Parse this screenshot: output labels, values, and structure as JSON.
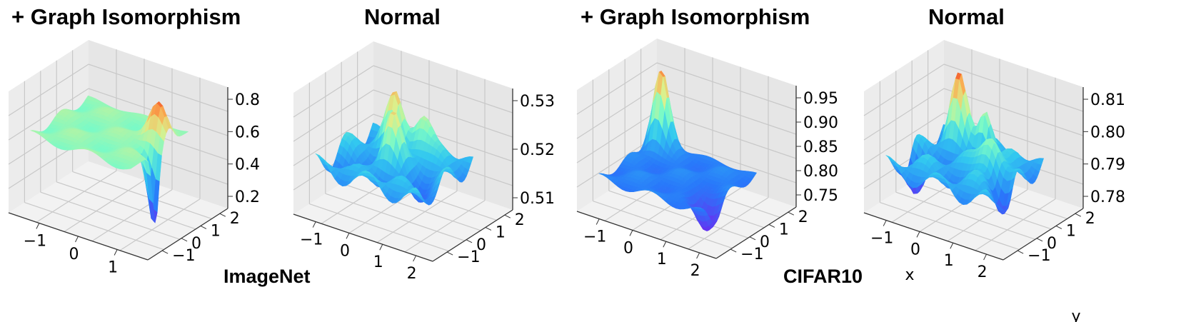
{
  "titles": [
    "+ Graph Isomorphism",
    "Normal",
    "+ Graph Isomorphism",
    "Normal"
  ],
  "dataset_labels": [
    "ImageNet",
    "CIFAR10"
  ],
  "chart_data": [
    {
      "type": "surface3d",
      "title": "+ Graph Isomorphism",
      "dataset": "ImageNet",
      "colormap": "rainbow",
      "xlabel": "",
      "ylabel": "",
      "xticks": [
        "−1",
        "0",
        "1"
      ],
      "yticks": [
        "−1",
        "0",
        "1",
        "2"
      ],
      "zticks": [
        "0.2",
        "0.4",
        "0.6",
        "0.8"
      ],
      "xlim": [
        -2,
        2
      ],
      "ylim": [
        -2,
        2.5
      ],
      "zlim": [
        0.1,
        0.85
      ],
      "base": 0.58,
      "features": [
        {
          "kind": "peak",
          "x": 1.2,
          "y": 0.7,
          "amp": 0.24,
          "sigma": 0.3
        },
        {
          "kind": "valley",
          "x": 1.55,
          "y": -0.25,
          "amp": -0.45,
          "sigma": 0.22
        }
      ]
    },
    {
      "type": "surface3d",
      "title": "Normal",
      "dataset": "ImageNet",
      "colormap": "rainbow",
      "xlabel": "",
      "ylabel": "",
      "xticks": [
        "−1",
        "0",
        "1",
        "2"
      ],
      "yticks": [
        "−1",
        "0",
        "1",
        "2"
      ],
      "zticks": [
        "0.51",
        "0.52",
        "0.53"
      ],
      "xlim": [
        -2,
        2.5
      ],
      "ylim": [
        -2,
        2.5
      ],
      "zlim": [
        0.505,
        0.535
      ],
      "base": 0.517,
      "features": [
        {
          "kind": "peak",
          "x": -0.6,
          "y": 1.2,
          "amp": 0.012,
          "sigma": 0.3
        },
        {
          "kind": "peak",
          "x": 0.3,
          "y": 1.5,
          "amp": 0.011,
          "sigma": 0.35
        },
        {
          "kind": "peak",
          "x": -0.1,
          "y": 0.1,
          "amp": 0.01,
          "sigma": 0.3
        },
        {
          "kind": "valley",
          "x": 1.3,
          "y": -0.5,
          "amp": -0.006,
          "sigma": 0.4
        },
        {
          "kind": "valley",
          "x": -1.2,
          "y": -0.8,
          "amp": -0.006,
          "sigma": 0.35
        }
      ]
    },
    {
      "type": "surface3d",
      "title": "+ Graph Isomorphism",
      "dataset": "CIFAR10",
      "colormap": "rainbow",
      "xlabel": "",
      "ylabel": "",
      "xticks": [
        "−1",
        "0",
        "1",
        "2"
      ],
      "yticks": [
        "−1",
        "0",
        "1",
        "2"
      ],
      "zticks": [
        "0.75",
        "0.80",
        "0.85",
        "0.90",
        "0.95"
      ],
      "xlim": [
        -2,
        2.5
      ],
      "ylim": [
        -2,
        2.5
      ],
      "zlim": [
        0.74,
        0.96
      ],
      "base": 0.8,
      "features": [
        {
          "kind": "peak",
          "x": -1.5,
          "y": 1.5,
          "amp": 0.15,
          "sigma": 0.3
        },
        {
          "kind": "valley",
          "x": 1.6,
          "y": -0.8,
          "amp": -0.06,
          "sigma": 0.4
        }
      ]
    },
    {
      "type": "surface3d",
      "title": "Normal",
      "dataset": "CIFAR10",
      "colormap": "rainbow",
      "xlabel": "x",
      "ylabel": "y",
      "xticks": [
        "−1",
        "0",
        "1",
        "2"
      ],
      "yticks": [
        "−1",
        "0",
        "1",
        "2"
      ],
      "zticks": [
        "0.78",
        "0.79",
        "0.80",
        "0.81"
      ],
      "xlim": [
        -2,
        2.5
      ],
      "ylim": [
        -2,
        2.5
      ],
      "zlim": [
        0.775,
        0.815
      ],
      "base": 0.79,
      "features": [
        {
          "kind": "peak",
          "x": -1.0,
          "y": 1.4,
          "amp": 0.02,
          "sigma": 0.3
        },
        {
          "kind": "peak",
          "x": 0.0,
          "y": 1.5,
          "amp": 0.017,
          "sigma": 0.25
        },
        {
          "kind": "peak",
          "x": 1.0,
          "y": 0.2,
          "amp": 0.015,
          "sigma": 0.35
        },
        {
          "kind": "valley",
          "x": -1.6,
          "y": -0.5,
          "amp": -0.012,
          "sigma": 0.3
        },
        {
          "kind": "valley",
          "x": 1.8,
          "y": -0.4,
          "amp": -0.01,
          "sigma": 0.3
        }
      ]
    }
  ]
}
